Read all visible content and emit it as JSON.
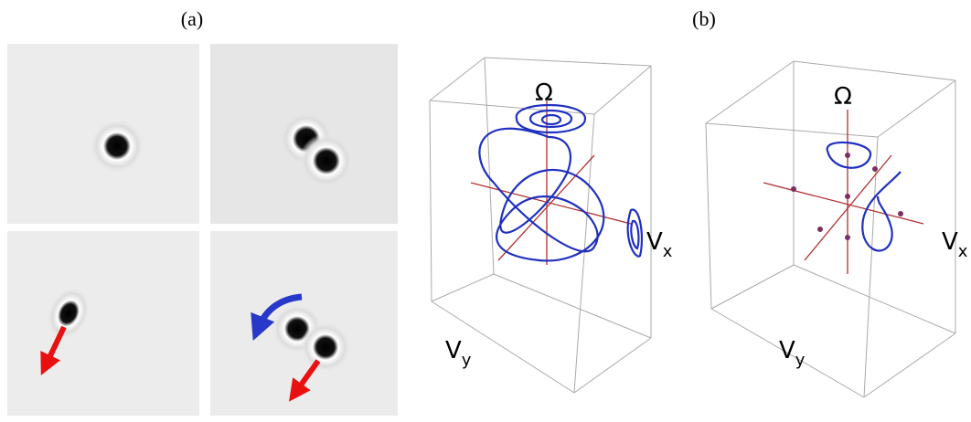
{
  "panel_a": {
    "label": "(a)"
  },
  "panel_b": {
    "label": "(b)"
  },
  "left_plot": {
    "omega": "Ω",
    "vx": {
      "symbol": "V",
      "subscript": "x"
    },
    "vy": {
      "symbol": "V",
      "subscript": "y"
    }
  },
  "right_plot": {
    "omega": "Ω",
    "vx": {
      "symbol": "V",
      "subscript": "x"
    },
    "vy": {
      "symbol": "V",
      "subscript": "y"
    }
  }
}
